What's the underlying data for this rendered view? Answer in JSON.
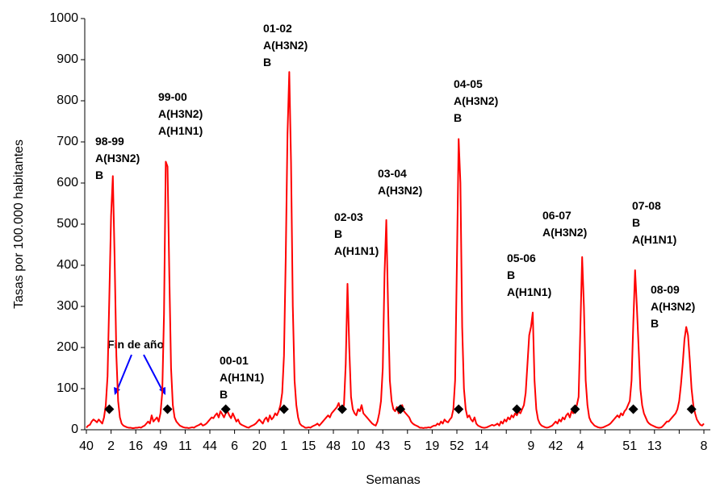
{
  "chart_data": {
    "type": "line",
    "x_label": "Semanas",
    "y_label": "Tasas por 100.000 habitantes",
    "categories": [
      "40",
      null,
      null,
      null,
      null,
      null,
      null,
      null,
      null,
      null,
      null,
      null,
      null,
      null,
      "2",
      null,
      null,
      null,
      null,
      null,
      null,
      null,
      null,
      null,
      null,
      null,
      null,
      null,
      "16",
      null,
      null,
      null,
      null,
      null,
      null,
      null,
      null,
      null,
      null,
      null,
      null,
      null,
      "49",
      null,
      null,
      null,
      null,
      null,
      null,
      null,
      null,
      null,
      null,
      null,
      null,
      null,
      "11",
      null,
      null,
      null,
      null,
      null,
      null,
      null,
      null,
      null,
      null,
      null,
      null,
      null,
      "44",
      null,
      null,
      null,
      null,
      null,
      null,
      null,
      null,
      null,
      null,
      null,
      null,
      null,
      "6",
      null,
      null,
      null,
      null,
      null,
      null,
      null,
      null,
      null,
      null,
      null,
      null,
      null,
      "20",
      null,
      null,
      null,
      null,
      null,
      null,
      null,
      null,
      null,
      null,
      null,
      null,
      null,
      "1",
      null,
      null,
      null,
      null,
      null,
      null,
      null,
      null,
      null,
      null,
      null,
      null,
      null,
      "15",
      null,
      null,
      null,
      null,
      null,
      null,
      null,
      null,
      null,
      null,
      null,
      null,
      null,
      "48",
      null,
      null,
      null,
      null,
      null,
      null,
      null,
      null,
      null,
      null,
      null,
      null,
      null,
      "10",
      null,
      null,
      null,
      null,
      null,
      null,
      null,
      null,
      null,
      null,
      null,
      null,
      null,
      "43",
      null,
      null,
      null,
      null,
      null,
      null,
      null,
      null,
      null,
      null,
      null,
      null,
      null,
      "5",
      null,
      null,
      null,
      null,
      null,
      null,
      null,
      null,
      null,
      null,
      null,
      null,
      null,
      "19",
      null,
      null,
      null,
      null,
      null,
      null,
      null,
      null,
      null,
      null,
      null,
      null,
      null,
      "52",
      null,
      null,
      null,
      null,
      null,
      null,
      null,
      null,
      null,
      null,
      null,
      null,
      null,
      "14",
      null,
      null,
      null,
      null,
      null,
      null,
      null,
      null,
      null,
      null,
      null,
      null,
      null,
      null,
      null,
      null,
      null,
      null,
      null,
      null,
      null,
      null,
      null,
      null,
      null,
      null,
      null,
      "9",
      null,
      null,
      null,
      null,
      null,
      null,
      null,
      null,
      null,
      null,
      null,
      null,
      null,
      "42",
      null,
      null,
      null,
      null,
      null,
      null,
      null,
      null,
      null,
      null,
      null,
      null,
      null,
      "4",
      null,
      null,
      null,
      null,
      null,
      null,
      null,
      null,
      null,
      null,
      null,
      null,
      null,
      null,
      null,
      null,
      null,
      null,
      null,
      null,
      null,
      null,
      null,
      null,
      null,
      null,
      null,
      "51",
      null,
      null,
      null,
      null,
      null,
      null,
      null,
      null,
      null,
      null,
      null,
      null,
      null,
      "13",
      null,
      null,
      null,
      null,
      null,
      null,
      null,
      null,
      null,
      null,
      null,
      null,
      null,
      null,
      null,
      null,
      null,
      null,
      null,
      null,
      null,
      null,
      null,
      null,
      null,
      null,
      null,
      "8"
    ],
    "series": [
      {
        "color": "#ff0000",
        "values": [
          5,
          10,
          12,
          20,
          25,
          22,
          18,
          25,
          20,
          15,
          30,
          60,
          130,
          320,
          520,
          617,
          420,
          180,
          70,
          30,
          15,
          10,
          8,
          6,
          5,
          5,
          4,
          4,
          5,
          5,
          6,
          5,
          8,
          10,
          15,
          20,
          15,
          35,
          20,
          25,
          30,
          20,
          40,
          90,
          280,
          652,
          640,
          380,
          150,
          60,
          30,
          20,
          15,
          10,
          8,
          6,
          5,
          5,
          4,
          5,
          6,
          5,
          8,
          10,
          12,
          15,
          10,
          12,
          15,
          20,
          25,
          30,
          28,
          35,
          40,
          30,
          45,
          38,
          30,
          40,
          45,
          35,
          28,
          40,
          30,
          20,
          25,
          15,
          12,
          10,
          8,
          6,
          5,
          8,
          10,
          12,
          15,
          20,
          25,
          20,
          15,
          25,
          30,
          20,
          35,
          25,
          30,
          40,
          35,
          45,
          60,
          90,
          180,
          420,
          720,
          870,
          650,
          300,
          120,
          60,
          30,
          15,
          10,
          8,
          5,
          5,
          6,
          5,
          8,
          10,
          12,
          15,
          10,
          15,
          20,
          25,
          30,
          35,
          30,
          40,
          45,
          50,
          55,
          65,
          50,
          45,
          60,
          160,
          355,
          200,
          80,
          50,
          40,
          35,
          50,
          45,
          60,
          40,
          35,
          30,
          25,
          20,
          15,
          12,
          10,
          20,
          40,
          70,
          150,
          380,
          510,
          300,
          120,
          70,
          50,
          45,
          55,
          40,
          50,
          60,
          45,
          40,
          35,
          30,
          20,
          15,
          12,
          10,
          8,
          5,
          5,
          4,
          5,
          5,
          6,
          5,
          8,
          10,
          10,
          15,
          12,
          20,
          15,
          25,
          20,
          18,
          25,
          30,
          50,
          120,
          400,
          707,
          600,
          250,
          100,
          50,
          30,
          35,
          25,
          20,
          30,
          15,
          10,
          8,
          6,
          5,
          5,
          6,
          8,
          10,
          12,
          10,
          12,
          15,
          10,
          20,
          15,
          25,
          20,
          30,
          25,
          35,
          30,
          40,
          35,
          45,
          40,
          50,
          60,
          90,
          160,
          230,
          250,
          285,
          120,
          50,
          25,
          15,
          10,
          8,
          6,
          5,
          6,
          8,
          10,
          15,
          20,
          15,
          25,
          20,
          30,
          25,
          35,
          40,
          30,
          45,
          40,
          50,
          60,
          80,
          250,
          420,
          300,
          120,
          60,
          30,
          20,
          15,
          10,
          8,
          6,
          5,
          5,
          6,
          8,
          10,
          12,
          15,
          20,
          25,
          30,
          35,
          30,
          40,
          35,
          45,
          50,
          60,
          70,
          120,
          260,
          388,
          300,
          200,
          100,
          60,
          40,
          30,
          20,
          15,
          12,
          10,
          8,
          6,
          5,
          5,
          6,
          10,
          15,
          20,
          20,
          25,
          30,
          35,
          40,
          50,
          70,
          110,
          160,
          220,
          250,
          230,
          170,
          100,
          60,
          40,
          25,
          18,
          12,
          10,
          15
        ]
      },
      {
        "color": "#000000",
        "marker": "diamond",
        "values": [
          null,
          null,
          null,
          null,
          null,
          null,
          null,
          null,
          null,
          null,
          null,
          null,
          null,
          50,
          null,
          null,
          null,
          null,
          null,
          null,
          null,
          null,
          null,
          null,
          null,
          null,
          null,
          null,
          null,
          null,
          null,
          null,
          null,
          null,
          null,
          null,
          null,
          null,
          null,
          null,
          null,
          null,
          null,
          null,
          null,
          null,
          50,
          null,
          null,
          null,
          null,
          null,
          null,
          null,
          null,
          null,
          null,
          null,
          null,
          null,
          null,
          null,
          null,
          null,
          null,
          null,
          null,
          null,
          null,
          null,
          null,
          null,
          null,
          null,
          null,
          null,
          null,
          null,
          null,
          50,
          null,
          null,
          null,
          null,
          null,
          null,
          null,
          null,
          null,
          null,
          null,
          null,
          null,
          null,
          null,
          null,
          null,
          null,
          null,
          null,
          null,
          null,
          null,
          null,
          null,
          null,
          null,
          null,
          null,
          null,
          null,
          null,
          50,
          null,
          null,
          null,
          null,
          null,
          null,
          null,
          null,
          null,
          null,
          null,
          null,
          null,
          null,
          null,
          null,
          null,
          null,
          null,
          null,
          null,
          null,
          null,
          null,
          null,
          null,
          null,
          null,
          null,
          null,
          null,
          null,
          50,
          null,
          null,
          null,
          null,
          null,
          null,
          null,
          null,
          null,
          null,
          null,
          null,
          null,
          null,
          null,
          null,
          null,
          null,
          null,
          null,
          null,
          null,
          null,
          null,
          null,
          null,
          null,
          null,
          null,
          null,
          null,
          null,
          50,
          null,
          null,
          null,
          null,
          null,
          null,
          null,
          null,
          null,
          null,
          null,
          null,
          null,
          null,
          null,
          null,
          null,
          null,
          null,
          null,
          null,
          null,
          null,
          null,
          null,
          null,
          null,
          null,
          null,
          null,
          null,
          null,
          50,
          null,
          null,
          null,
          null,
          null,
          null,
          null,
          null,
          null,
          null,
          null,
          null,
          null,
          null,
          null,
          null,
          null,
          null,
          null,
          null,
          null,
          null,
          null,
          null,
          null,
          null,
          null,
          null,
          null,
          null,
          null,
          null,
          50,
          null,
          null,
          null,
          null,
          null,
          null,
          null,
          null,
          null,
          null,
          null,
          null,
          null,
          null,
          null,
          null,
          null,
          null,
          null,
          null,
          null,
          null,
          null,
          null,
          null,
          null,
          null,
          null,
          null,
          null,
          null,
          null,
          50,
          null,
          null,
          null,
          null,
          null,
          null,
          null,
          null,
          null,
          null,
          null,
          null,
          null,
          null,
          null,
          null,
          null,
          null,
          null,
          null,
          null,
          null,
          null,
          null,
          null,
          null,
          null,
          null,
          null,
          null,
          null,
          null,
          50,
          null,
          null,
          null,
          null,
          null,
          null,
          null,
          null,
          null,
          null,
          null,
          null,
          null,
          null,
          null,
          null,
          null,
          null,
          null,
          null,
          null,
          null,
          null,
          null,
          null,
          null,
          null,
          null,
          null,
          null,
          null,
          null,
          50,
          null,
          null,
          null,
          null,
          null,
          null,
          null
        ]
      }
    ],
    "ylim": [
      0,
      1000
    ],
    "yticks": [
      0,
      100,
      200,
      300,
      400,
      500,
      600,
      700,
      800,
      900,
      1000
    ],
    "grid": false,
    "annotations": [
      [
        "98-99",
        "A(H3N2)",
        "B"
      ],
      [
        "99-00",
        "A(H3N2)",
        "A(H1N1)"
      ],
      [
        "00-01",
        "A(H1N1)",
        "B"
      ],
      [
        "01-02",
        "A(H3N2)",
        "B"
      ],
      [
        "02-03",
        "B",
        "A(H1N1)"
      ],
      [
        "03-04",
        "A(H3N2)"
      ],
      [
        "04-05",
        "A(H3N2)",
        "B"
      ],
      [
        "05-06",
        "B",
        "A(H1N1)"
      ],
      [
        "06-07",
        "A(H3N2)"
      ],
      [
        "07-08",
        "B",
        "A(H1N1)"
      ],
      [
        "08-09",
        "A(H3N2)",
        "B"
      ]
    ],
    "note": "Fin de año"
  }
}
